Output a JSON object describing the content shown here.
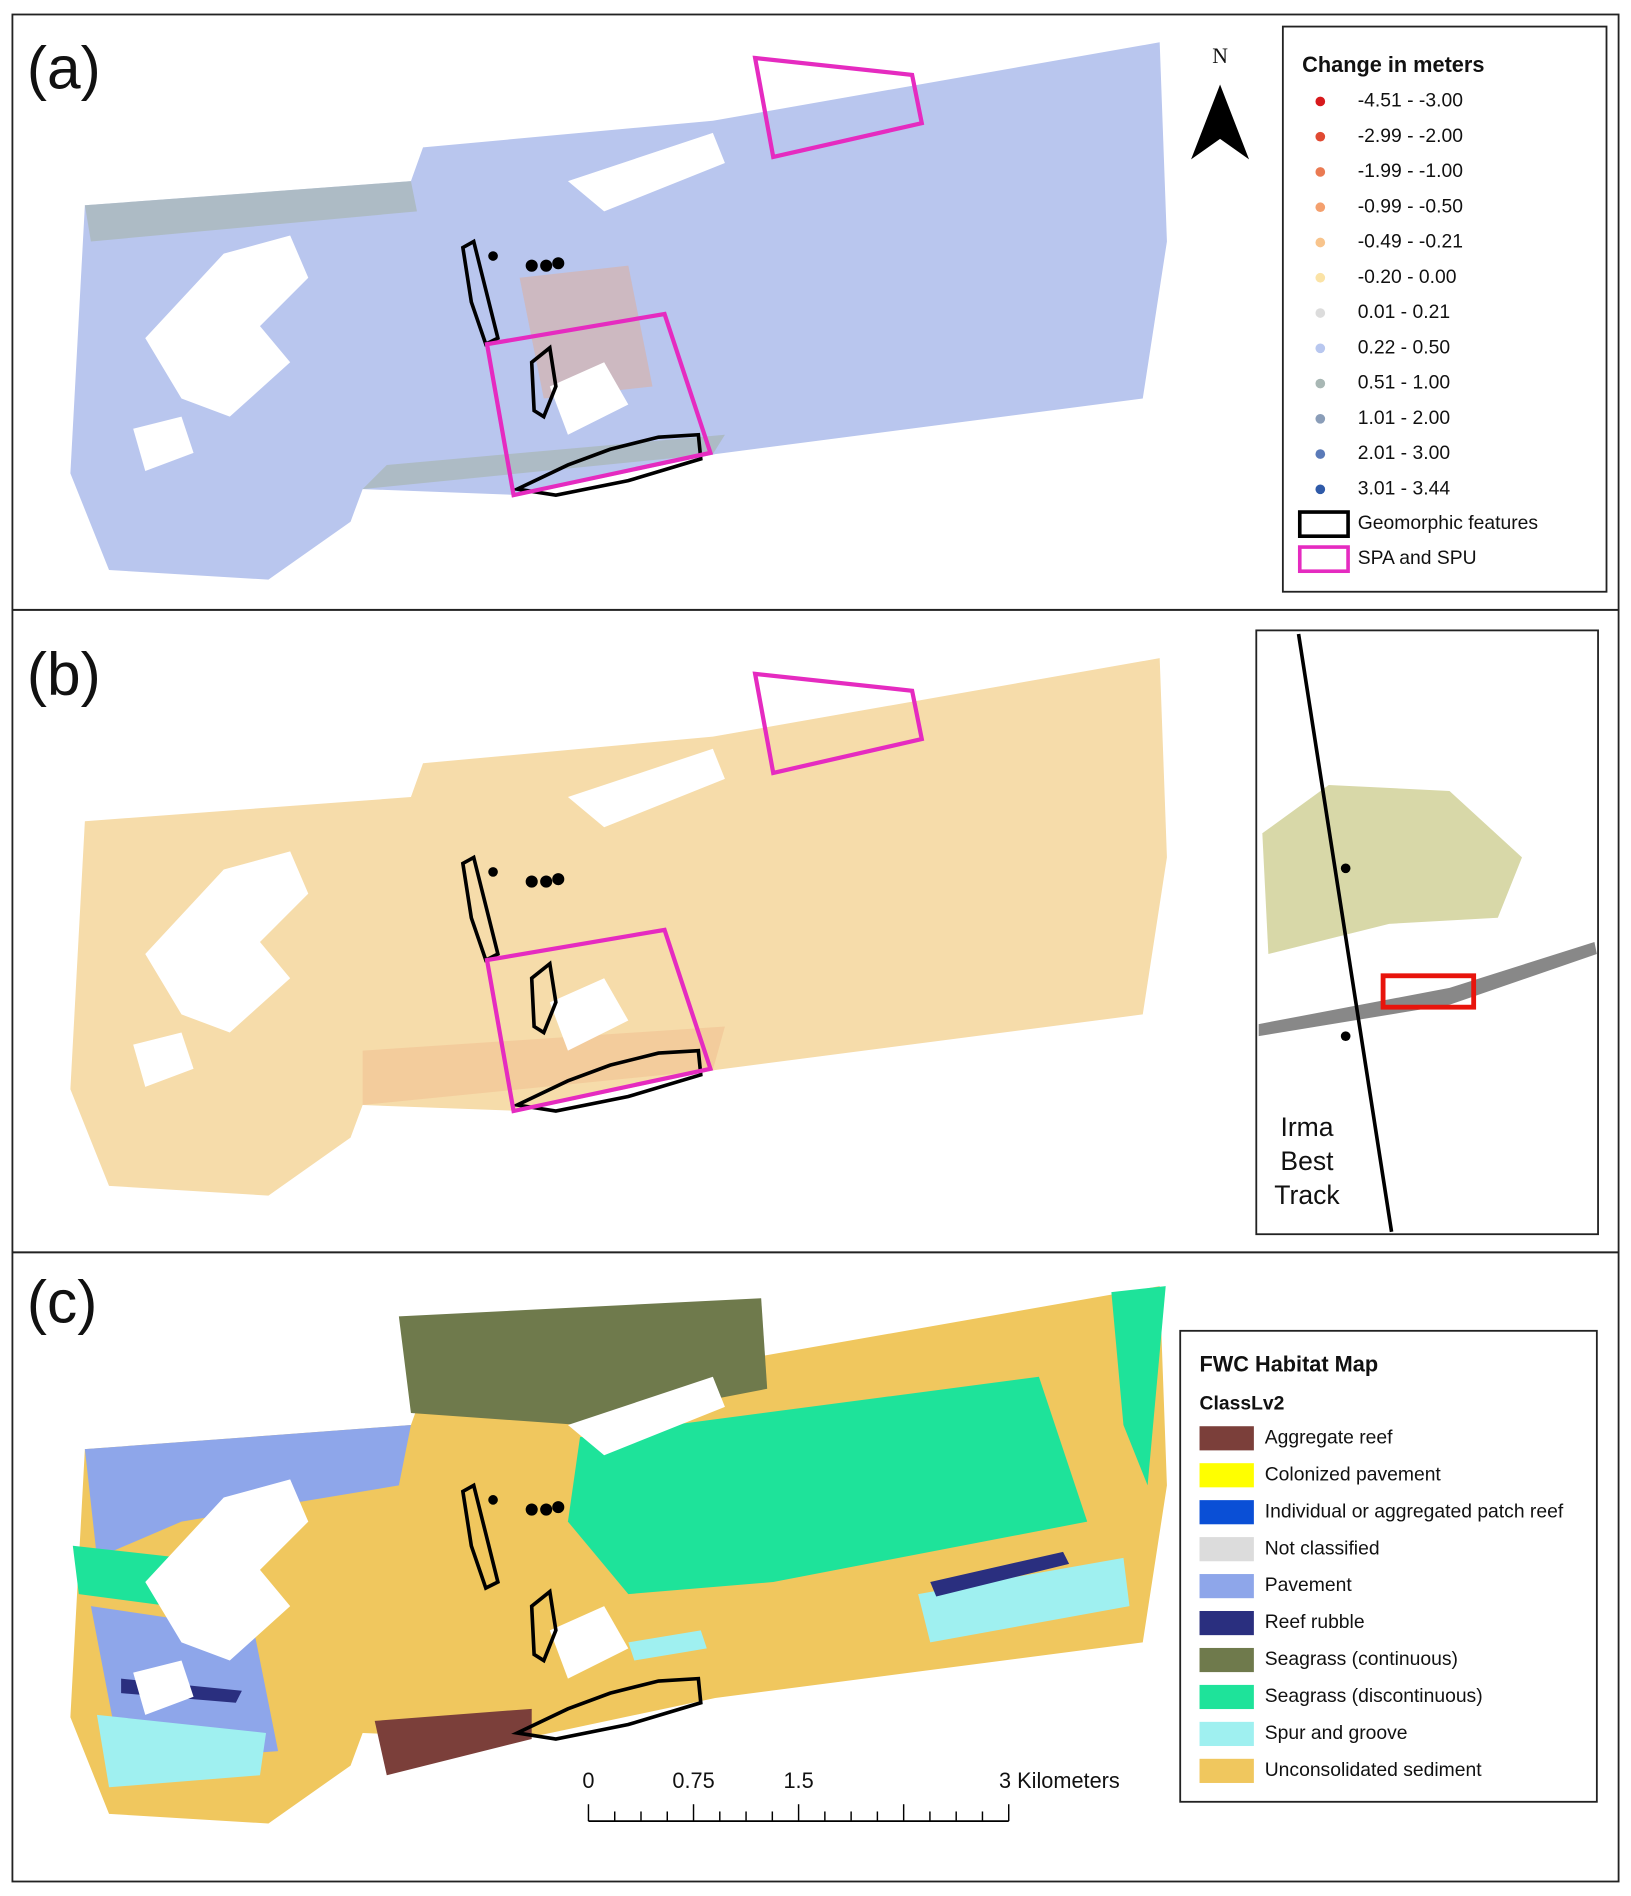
{
  "panels": [
    {
      "label": "(a)"
    },
    {
      "label": "(b)"
    },
    {
      "label": "(c)"
    }
  ],
  "north_arrow": "N",
  "change_legend": {
    "title": "Change in meters",
    "classes": [
      {
        "label": "-4.51 - -3.00",
        "color": "#d7191c"
      },
      {
        "label": "-2.99 - -2.00",
        "color": "#e04a32"
      },
      {
        "label": "-1.99 - -1.00",
        "color": "#ea7a52"
      },
      {
        "label": "-0.99 - -0.50",
        "color": "#f4a06e"
      },
      {
        "label": "-0.49 - -0.21",
        "color": "#f8c48c"
      },
      {
        "label": "-0.20 - 0.00",
        "color": "#fbe3a6"
      },
      {
        "label": "0.01 - 0.21",
        "color": "#dcdcdc"
      },
      {
        "label": "0.22 - 0.50",
        "color": "#b8c7ef"
      },
      {
        "label": "0.51 - 1.00",
        "color": "#a8b7b4"
      },
      {
        "label": "1.01 - 2.00",
        "color": "#8a9db8"
      },
      {
        "label": "2.01 - 3.00",
        "color": "#5a7ab8"
      },
      {
        "label": "3.01 - 3.44",
        "color": "#2f5aa8"
      }
    ],
    "outlines": [
      {
        "label": "Geomorphic features",
        "color": "#000000"
      },
      {
        "label": "SPA and SPU",
        "color": "#e52bc0"
      }
    ]
  },
  "inset": {
    "track_label": [
      "Irma",
      "Best",
      "Track"
    ]
  },
  "habitat_legend": {
    "title": "FWC Habitat Map",
    "subtitle": "ClassLv2",
    "classes": [
      {
        "label": "Aggregate reef",
        "color": "#7b3f3a"
      },
      {
        "label": "Colonized pavement",
        "color": "#ffff00"
      },
      {
        "label": "Individual or aggregated patch reef",
        "color": "#0a4fd6"
      },
      {
        "label": "Not classified",
        "color": "#dcdcdc"
      },
      {
        "label": "Pavement",
        "color": "#8ea6ea"
      },
      {
        "label": "Reef rubble",
        "color": "#2a2f7f"
      },
      {
        "label": "Seagrass (continuous)",
        "color": "#6f7a4c"
      },
      {
        "label": "Seagrass (discontinuous)",
        "color": "#1ee39a"
      },
      {
        "label": "Spur and groove",
        "color": "#9ff0f0"
      },
      {
        "label": "Unconsolidated sediment",
        "color": "#f0c75e"
      }
    ]
  },
  "scale_bar": {
    "labels": [
      "0",
      "0.75",
      "1.5",
      "3 Kilometers"
    ]
  }
}
